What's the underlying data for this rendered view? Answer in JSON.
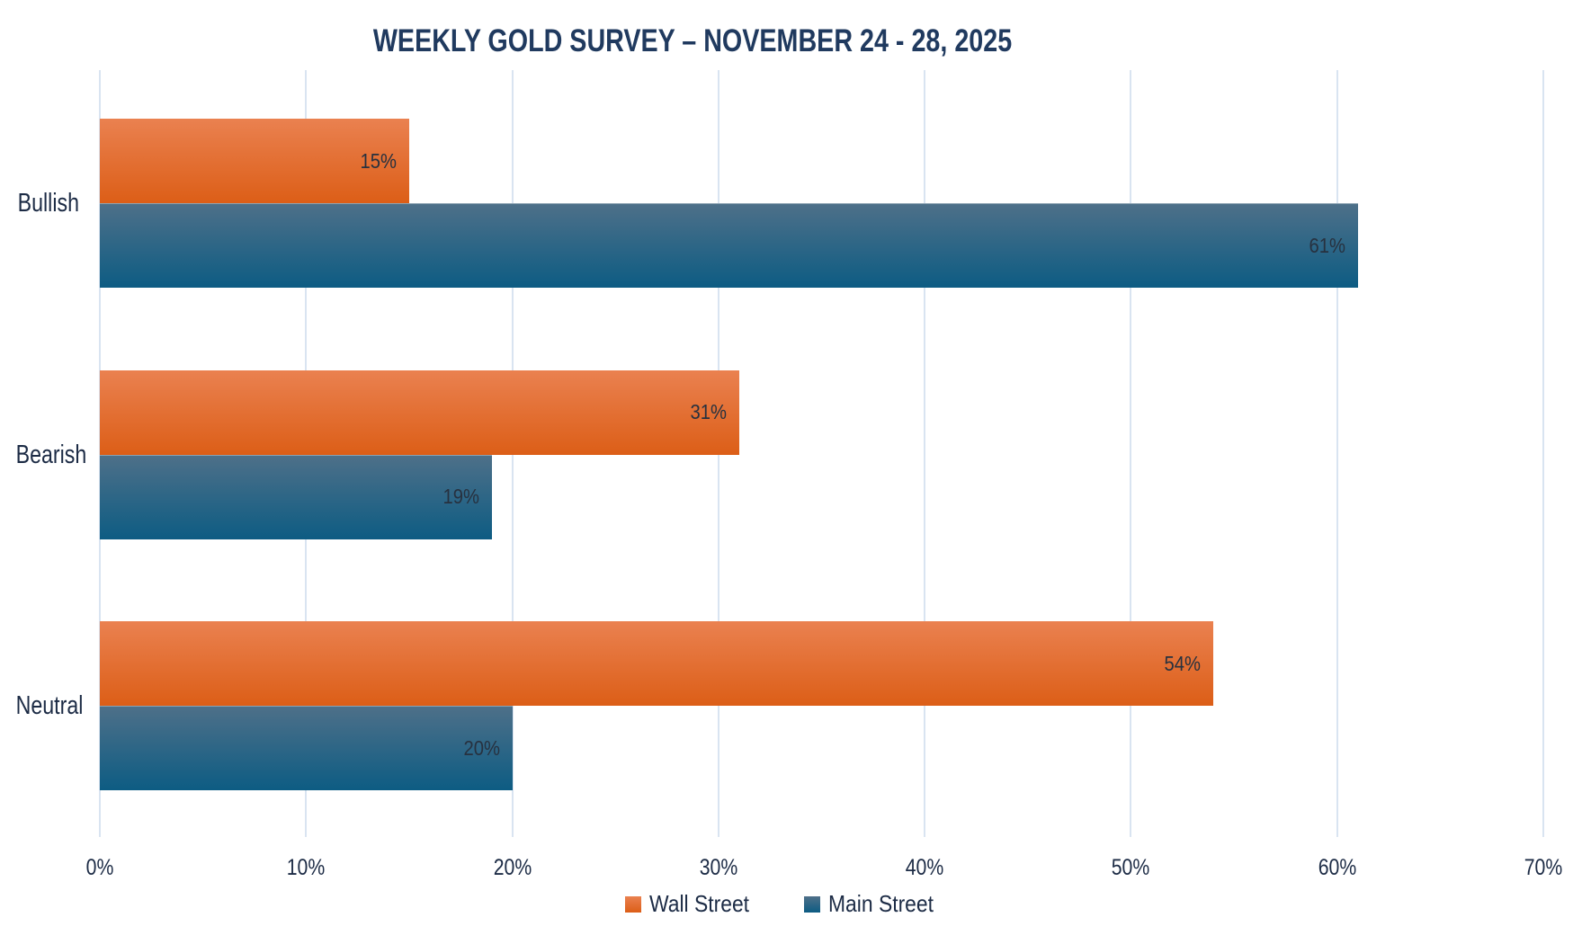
{
  "title": "WEEKLY GOLD SURVEY – NOVEMBER 24 - 28, 2025",
  "chart_data": {
    "type": "bar",
    "orientation": "horizontal",
    "title": "WEEKLY GOLD SURVEY – NOVEMBER 24 - 28, 2025",
    "categories": [
      "Bullish",
      "Bearish",
      "Neutral"
    ],
    "series": [
      {
        "name": "Wall Street",
        "values": [
          15,
          31,
          54
        ],
        "labels": [
          "15%",
          "31%",
          "54%"
        ],
        "color_top": "#EA8150",
        "color_bottom": "#DC5E17"
      },
      {
        "name": "Main Street",
        "values": [
          61,
          19,
          20
        ],
        "labels": [
          "61%",
          "19%",
          "20%"
        ],
        "color_top": "#4E7089",
        "color_bottom": "#0D5C83"
      }
    ],
    "xlabel": "",
    "ylabel": "",
    "xlim": [
      0,
      70
    ],
    "tick_step": 10,
    "tick_labels": [
      "0%",
      "10%",
      "20%",
      "30%",
      "40%",
      "50%",
      "60%",
      "70%"
    ],
    "grid": true,
    "legend_position": "bottom",
    "legend_entries": [
      "Wall Street",
      "Main Street"
    ],
    "colors": {
      "gridline": "#D9E4F1",
      "title_text": "#203A5F",
      "axis_text": "#1C2B45",
      "data_label_text": "#27313F",
      "background": "#FFFFFF"
    }
  }
}
